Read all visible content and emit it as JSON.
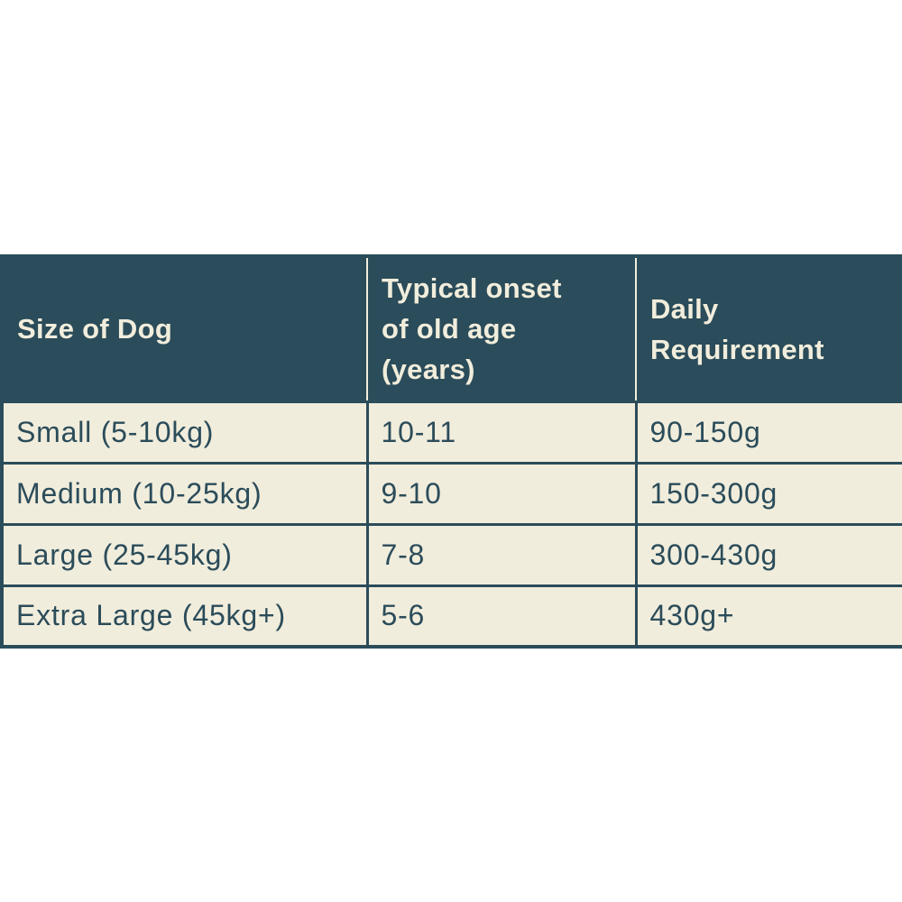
{
  "chart_data": {
    "type": "table",
    "columns": [
      "Size of Dog",
      "Typical onset\nof old age\n(years)",
      "Daily\nRequirement"
    ],
    "rows": [
      [
        "Small (5-10kg)",
        "10-11",
        "90-150g"
      ],
      [
        "Medium (10-25kg)",
        "9-10",
        "150-300g"
      ],
      [
        "Large (25-45kg)",
        "7-8",
        "300-430g"
      ],
      [
        "Extra Large (45kg+)",
        "5-6",
        "430g+"
      ]
    ]
  },
  "colors": {
    "header_background": "#2b4c5a",
    "header_text": "#f1eddc",
    "body_background": "#f1eddc",
    "body_text": "#2b4c5a",
    "border": "#2b4c5a",
    "header_divider": "#f1eddc",
    "page_background": "#ffffff"
  }
}
